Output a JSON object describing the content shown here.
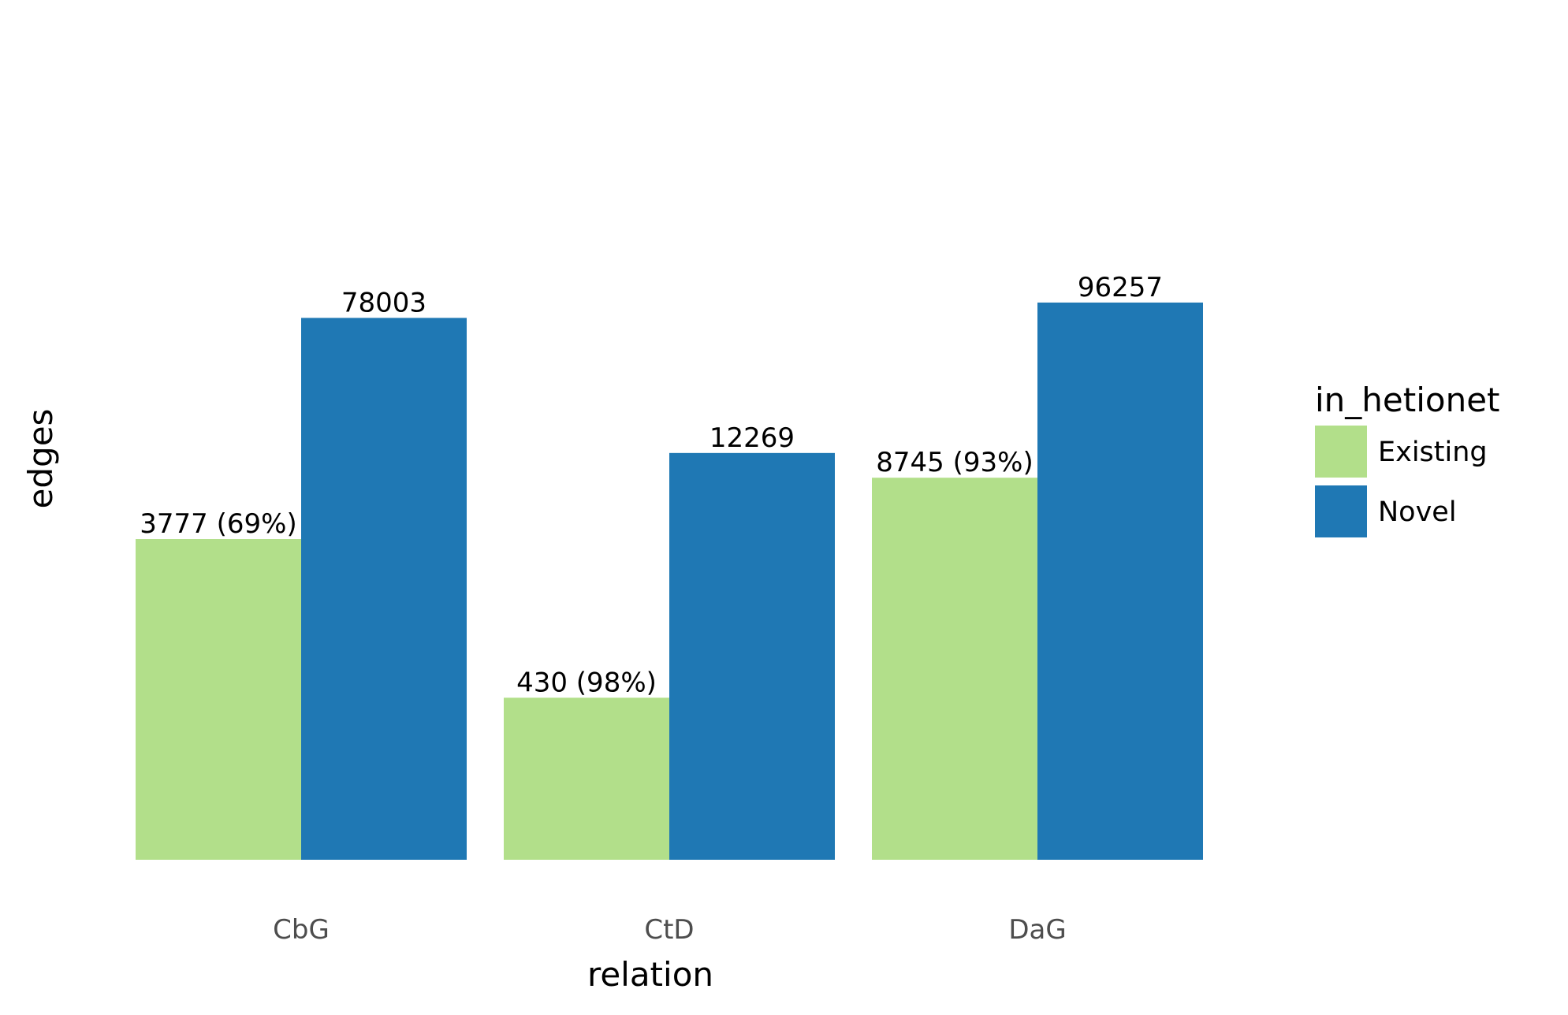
{
  "chart_data": {
    "type": "bar",
    "title": "",
    "xlabel": "relation",
    "ylabel": "edges",
    "categories": [
      "CbG",
      "CtD",
      "DaG"
    ],
    "log_scale_y": true,
    "grid": false,
    "series": [
      {
        "name": "Existing",
        "color": "#b2df8a",
        "values": [
          3777,
          430,
          8745
        ],
        "labels": [
          "3777 (69%)",
          "430 (98%)",
          "8745 (93%)"
        ]
      },
      {
        "name": "Novel",
        "color": "#1f78b4",
        "values": [
          78003,
          12269,
          96257
        ],
        "labels": [
          "78003",
          "12269",
          "96257"
        ]
      }
    ],
    "legend": {
      "title": "in_hetionet",
      "placement": "right"
    }
  }
}
